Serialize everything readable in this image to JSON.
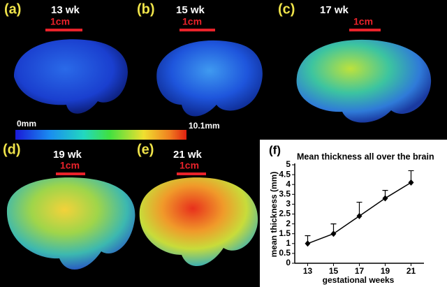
{
  "panels": [
    {
      "label": "(a)",
      "week": "13 wk",
      "scale": "1cm"
    },
    {
      "label": "(b)",
      "week": "15 wk",
      "scale": "1cm"
    },
    {
      "label": "(c)",
      "week": "17 wk",
      "scale": "1cm"
    },
    {
      "label": "(d)",
      "week": "19 wk",
      "scale": "1cm"
    },
    {
      "label": "(e)",
      "week": "21 wk",
      "scale": "1cm"
    }
  ],
  "colorbar": {
    "min_label": "0mm",
    "max_label": "10.1mm"
  },
  "chart_data": {
    "type": "line",
    "panel_label": "(f)",
    "title": "Mean thickness all over the brain",
    "x_label": "gestational weeks",
    "y_label": "mean thickness (mm)",
    "x": [
      13,
      15,
      17,
      19,
      21
    ],
    "series": [
      {
        "color": "#000000",
        "values": [
          1.0,
          1.5,
          2.4,
          3.3,
          4.1
        ],
        "errors": [
          0.4,
          0.5,
          0.7,
          0.4,
          0.6
        ]
      }
    ],
    "xlim": [
      12,
      22
    ],
    "xticks": [
      13,
      15,
      17,
      19,
      21
    ],
    "ylim": [
      0,
      5
    ],
    "yticks": [
      0,
      0.5,
      1,
      1.5,
      2,
      2.5,
      3,
      3.5,
      4,
      4.5,
      5
    ]
  }
}
